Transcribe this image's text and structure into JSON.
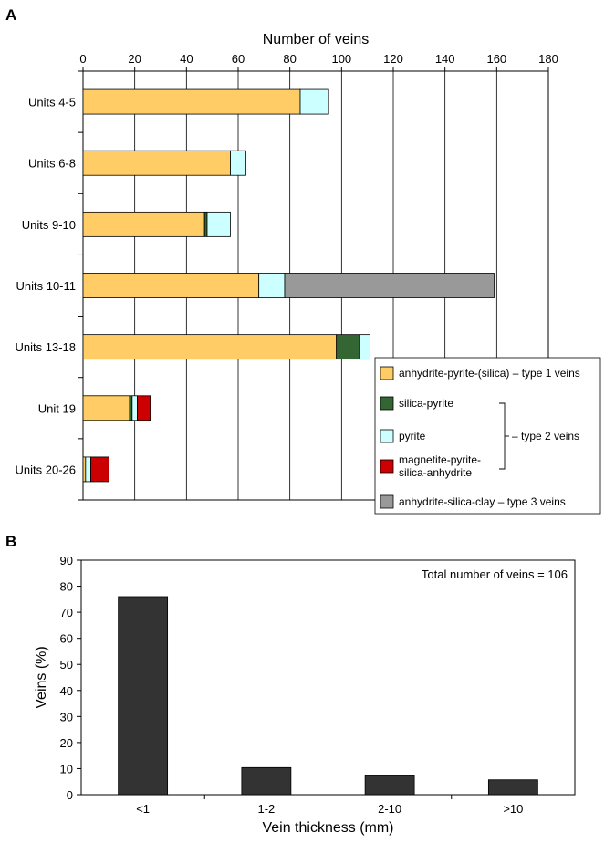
{
  "charts": [
    {
      "panel_label": "A",
      "type": "bar",
      "orientation": "horizontal",
      "stacked": true,
      "xlabel": "Number of veins",
      "xlim": [
        0,
        180
      ],
      "xticks": [
        0,
        20,
        40,
        60,
        80,
        100,
        120,
        140,
        160,
        180
      ],
      "categories": [
        "Units 4-5",
        "Units 6-8",
        "Units 9-10",
        "Units 10-11",
        "Units 13-18",
        "Unit 19",
        "Units 20-26"
      ],
      "series": [
        {
          "name": "anhydrite-pyrite-(silica) – type 1 veins",
          "color": "#ffcc66",
          "values": [
            84,
            57,
            47,
            68,
            98,
            18,
            1
          ]
        },
        {
          "name": "silica-pyrite",
          "color": "#336633",
          "values": [
            0,
            0,
            1,
            0,
            9,
            1,
            0
          ]
        },
        {
          "name": "pyrite",
          "color": "#ccffff",
          "values": [
            11,
            6,
            9,
            10,
            4,
            2,
            2
          ]
        },
        {
          "name": "magnetite-pyrite-silica-anhydrite",
          "color": "#cc0000",
          "values": [
            0,
            0,
            0,
            0,
            0,
            5,
            7
          ]
        },
        {
          "name": "anhydrite-silica-clay – type 3 veins",
          "color": "#999999",
          "values": [
            0,
            0,
            0,
            81,
            0,
            0,
            0
          ]
        }
      ],
      "legend": {
        "position": "bottom-right",
        "group_label": "– type 2 veins",
        "entries": [
          {
            "lines": [
              "anhydrite-pyrite-(silica) – type 1 veins"
            ],
            "color": "#ffcc66"
          },
          {
            "lines": [
              "silica-pyrite"
            ],
            "color": "#336633"
          },
          {
            "lines": [
              "pyrite"
            ],
            "color": "#ccffff"
          },
          {
            "lines": [
              "magnetite-pyrite-",
              "silica-anhydrite"
            ],
            "color": "#cc0000"
          },
          {
            "lines": [
              "anhydrite-silica-clay – type 3 veins"
            ],
            "color": "#999999"
          }
        ]
      }
    },
    {
      "panel_label": "B",
      "type": "bar",
      "orientation": "vertical",
      "xlabel": "Vein thickness (mm)",
      "ylabel": "Veins (%)",
      "ylim": [
        0,
        90
      ],
      "yticks": [
        0,
        10,
        20,
        30,
        40,
        50,
        60,
        70,
        80,
        90
      ],
      "categories": [
        "<1",
        "1-2",
        "2-10",
        ">10"
      ],
      "values": [
        76,
        10.4,
        7.3,
        5.7
      ],
      "bar_color": "#333333",
      "annotation": "Total number of veins = 106"
    }
  ]
}
